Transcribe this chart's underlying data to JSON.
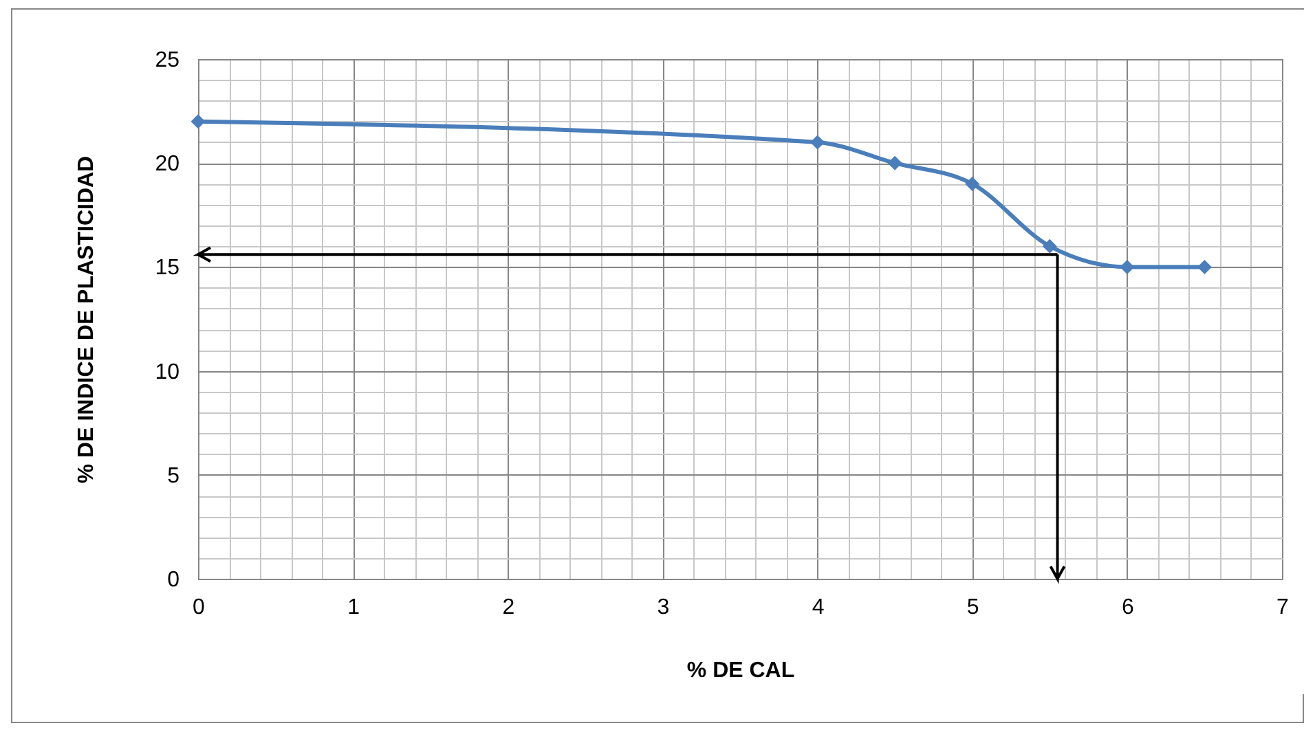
{
  "chart_data": {
    "type": "line",
    "xlabel": "% DE CAL",
    "ylabel": "% DE INDICE DE PLASTICIDAD",
    "x": [
      0,
      4,
      4.5,
      5,
      5.5,
      6,
      6.5
    ],
    "series": [
      {
        "color": "#4a7ebb",
        "values": [
          22,
          21,
          20,
          19,
          16,
          15,
          15
        ]
      }
    ],
    "marker": "diamond",
    "line_style": "solid",
    "grid": true,
    "xlim": [
      0,
      7
    ],
    "ylim": [
      0,
      25
    ],
    "xticks": [
      0,
      {
        "value": 0.2,
        "label": null
      },
      {
        "value": 0.4,
        "label": null
      },
      {
        "value": 0.6,
        "label": null
      },
      {
        "value": 0.8,
        "label": null
      },
      1,
      {
        "value": 1.2,
        "label": null
      },
      {
        "value": 1.4,
        "label": null
      },
      {
        "value": 1.6,
        "label": null
      },
      {
        "value": 1.8,
        "label": null
      },
      2,
      {
        "value": 2.2,
        "label": null
      },
      {
        "value": 2.4,
        "label": null
      },
      {
        "value": 2.6,
        "label": null
      },
      {
        "value": 2.8,
        "label": null
      },
      3,
      {
        "value": 3.2,
        "label": null
      },
      {
        "value": 3.4,
        "label": null
      },
      {
        "value": 3.6,
        "label": null
      },
      {
        "value": 3.8,
        "label": null
      },
      4,
      {
        "value": 4.2,
        "label": null
      },
      {
        "value": 4.4,
        "label": null
      },
      {
        "value": 4.6,
        "label": null
      },
      {
        "value": 4.8,
        "label": null
      },
      5,
      {
        "value": 5.2,
        "label": null
      },
      {
        "value": 5.4,
        "label": null
      },
      {
        "value": 5.6,
        "label": null
      },
      {
        "value": 5.8,
        "label": null
      },
      6,
      {
        "value": 6.2,
        "label": null
      },
      {
        "value": 6.4,
        "label": null
      },
      {
        "value": 6.6,
        "label": null
      },
      {
        "value": 6.8,
        "label": null
      },
      7
    ],
    "yticks": [
      0,
      {
        "value": 1,
        "label": null
      },
      {
        "value": 2,
        "label": null
      },
      {
        "value": 3,
        "label": null
      },
      {
        "value": 4,
        "label": null
      },
      5,
      {
        "value": 6,
        "label": null
      },
      {
        "value": 7,
        "label": null
      },
      {
        "value": 8,
        "label": null
      },
      {
        "value": 9,
        "label": null
      },
      10,
      {
        "value": 11,
        "label": null
      },
      {
        "value": 12,
        "label": null
      },
      {
        "value": 13,
        "label": null
      },
      {
        "value": 14,
        "label": null
      },
      15,
      {
        "value": 16,
        "label": null
      },
      {
        "value": 17,
        "label": null
      },
      {
        "value": 18,
        "label": null
      },
      {
        "value": 19,
        "label": null
      },
      20,
      {
        "value": 21,
        "label": null
      },
      {
        "value": 22,
        "label": null
      },
      {
        "value": 23,
        "label": null
      },
      {
        "value": 24,
        "label": null
      },
      25
    ],
    "ref_lines": [
      {
        "axis": "y",
        "value": 15.6,
        "color": "#000000"
      },
      {
        "axis": "x",
        "value": 5.55,
        "color": "#000000"
      }
    ]
  }
}
